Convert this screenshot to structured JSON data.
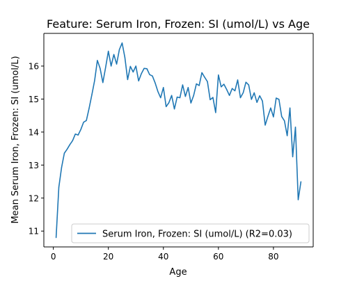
{
  "chart_data": {
    "type": "line",
    "title": "Feature: Serum Iron, Frozen: SI (umol/L) vs Age",
    "xlabel": "Age",
    "ylabel": "Mean Serum Iron, Frozen: SI (umol/L)",
    "xlim": [
      -3.45,
      94.45
    ],
    "ylim": [
      10.52,
      16.99
    ],
    "xticks": [
      0,
      20,
      40,
      60,
      80
    ],
    "yticks": [
      11,
      12,
      13,
      14,
      15,
      16
    ],
    "grid": false,
    "legend_position": "lower-right",
    "series": [
      {
        "name": "Serum Iron, Frozen: SI (umol/L) (R2=0.03)",
        "color": "#1f77b4",
        "x": [
          1,
          2,
          3,
          4,
          5,
          6,
          7,
          8,
          9,
          10,
          11,
          12,
          13,
          14,
          15,
          16,
          17,
          18,
          19,
          20,
          21,
          22,
          23,
          24,
          25,
          26,
          27,
          28,
          29,
          30,
          31,
          32,
          33,
          34,
          35,
          36,
          37,
          38,
          39,
          40,
          41,
          42,
          43,
          44,
          45,
          46,
          47,
          48,
          49,
          50,
          51,
          52,
          53,
          54,
          55,
          56,
          57,
          58,
          59,
          60,
          61,
          62,
          63,
          64,
          65,
          66,
          67,
          68,
          69,
          70,
          71,
          72,
          73,
          74,
          75,
          76,
          77,
          78,
          79,
          80,
          81,
          82,
          83,
          84,
          85,
          86,
          87,
          88,
          89,
          90
        ],
        "y": [
          10.8,
          12.33,
          12.93,
          13.36,
          13.48,
          13.62,
          13.74,
          13.94,
          13.91,
          14.08,
          14.3,
          14.35,
          14.72,
          15.13,
          15.56,
          16.17,
          15.93,
          15.5,
          15.96,
          16.45,
          16.0,
          16.35,
          16.06,
          16.5,
          16.7,
          16.26,
          15.59,
          15.99,
          15.82,
          16.0,
          15.55,
          15.77,
          15.93,
          15.92,
          15.74,
          15.7,
          15.49,
          15.23,
          15.04,
          15.35,
          14.77,
          14.89,
          15.11,
          14.7,
          15.06,
          15.04,
          15.43,
          15.08,
          15.35,
          14.88,
          15.11,
          15.46,
          15.41,
          15.8,
          15.66,
          15.53,
          14.98,
          15.05,
          14.59,
          15.73,
          15.37,
          15.45,
          15.29,
          15.11,
          15.32,
          15.25,
          15.58,
          15.04,
          15.19,
          15.51,
          15.43,
          14.99,
          15.19,
          14.9,
          15.1,
          14.94,
          14.21,
          14.48,
          14.73,
          14.46,
          15.03,
          14.99,
          14.47,
          14.34,
          13.89,
          14.73,
          13.25,
          14.15,
          11.95,
          12.5
        ]
      }
    ]
  }
}
